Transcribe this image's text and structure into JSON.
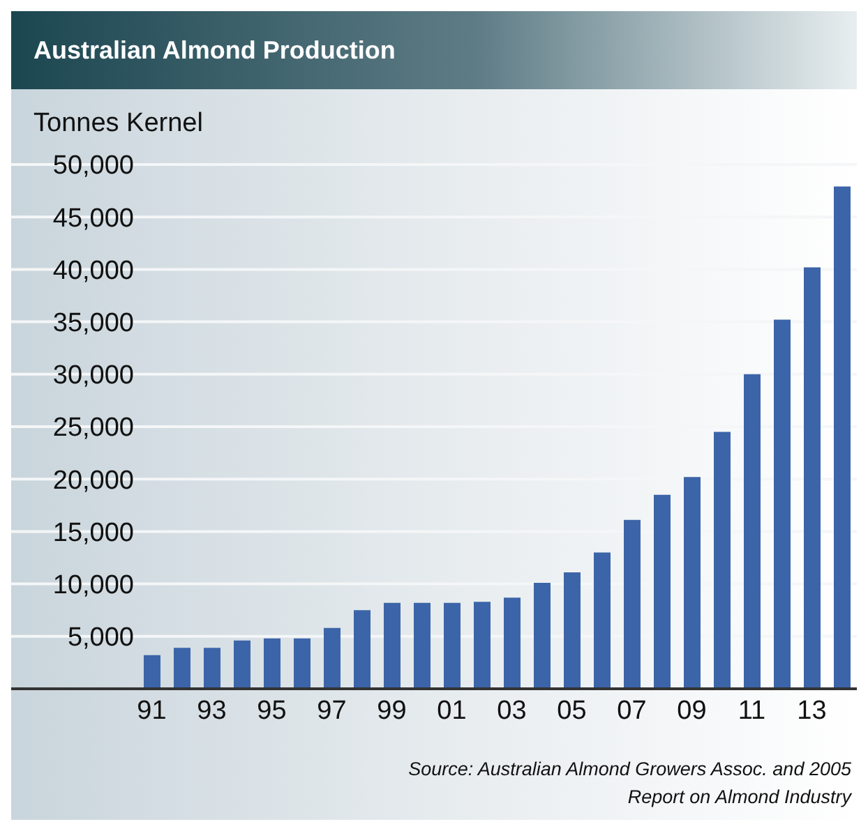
{
  "chart_data": {
    "type": "bar",
    "title": "Australian Almond Production",
    "ylabel": "Tonnes Kernel",
    "categories": [
      "91",
      null,
      "93",
      null,
      "95",
      null,
      "97",
      null,
      "99",
      null,
      "01",
      null,
      "03",
      null,
      "05",
      null,
      "07",
      null,
      "09",
      null,
      "11",
      null,
      "13",
      null
    ],
    "values": [
      3200,
      3900,
      3900,
      4600,
      4800,
      4800,
      5800,
      7500,
      8200,
      8200,
      8200,
      8300,
      8700,
      10100,
      11100,
      13000,
      16100,
      18500,
      20200,
      24500,
      30000,
      35200,
      40200,
      47900
    ],
    "color": "#3c64a8",
    "ylim": [
      0,
      50000
    ],
    "yticks": [
      {
        "value": 5000,
        "label": "5,000"
      },
      {
        "value": 10000,
        "label": "10,000"
      },
      {
        "value": 15000,
        "label": "15,000"
      },
      {
        "value": 20000,
        "label": "20,000"
      },
      {
        "value": 25000,
        "label": "25,000"
      },
      {
        "value": 30000,
        "label": "30,000"
      },
      {
        "value": 35000,
        "label": "35,000"
      },
      {
        "value": 40000,
        "label": "40,000"
      },
      {
        "value": 45000,
        "label": "45,000"
      },
      {
        "value": 50000,
        "label": "50,000"
      }
    ],
    "grid": "y",
    "annotations": [
      "Source: Australian Almond Growers Assoc. and 2005 Report on Almond Industry"
    ]
  }
}
